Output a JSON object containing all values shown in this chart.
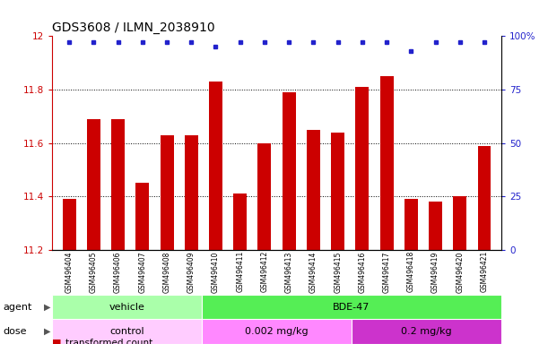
{
  "title": "GDS3608 / ILMN_2038910",
  "samples": [
    "GSM496404",
    "GSM496405",
    "GSM496406",
    "GSM496407",
    "GSM496408",
    "GSM496409",
    "GSM496410",
    "GSM496411",
    "GSM496412",
    "GSM496413",
    "GSM496414",
    "GSM496415",
    "GSM496416",
    "GSM496417",
    "GSM496418",
    "GSM496419",
    "GSM496420",
    "GSM496421"
  ],
  "bar_values": [
    11.39,
    11.69,
    11.69,
    11.45,
    11.63,
    11.63,
    11.83,
    11.41,
    11.6,
    11.79,
    11.65,
    11.64,
    11.81,
    11.85,
    11.39,
    11.38,
    11.4,
    11.59
  ],
  "percentile_values": [
    97,
    97,
    97,
    97,
    97,
    97,
    95,
    97,
    97,
    97,
    97,
    97,
    97,
    97,
    93,
    97,
    97,
    97
  ],
  "ymin": 11.2,
  "ymax": 12.0,
  "yticks_left": [
    11.2,
    11.4,
    11.6,
    11.8,
    12.0
  ],
  "ytick_labels_left": [
    "11.2",
    "11.4",
    "11.6",
    "11.8",
    "12"
  ],
  "right_yticks": [
    0,
    25,
    50,
    75,
    100
  ],
  "right_ytick_labels": [
    "0",
    "25",
    "50",
    "75",
    "100%"
  ],
  "bar_color": "#cc0000",
  "percentile_color": "#2222cc",
  "agent_row": [
    {
      "label": "vehicle",
      "start": 0,
      "end": 6,
      "color": "#aaffaa"
    },
    {
      "label": "BDE-47",
      "start": 6,
      "end": 18,
      "color": "#55ee55"
    }
  ],
  "dose_row": [
    {
      "label": "control",
      "start": 0,
      "end": 6,
      "color": "#ffccff"
    },
    {
      "label": "0.002 mg/kg",
      "start": 6,
      "end": 12,
      "color": "#ff88ff"
    },
    {
      "label": "0.2 mg/kg",
      "start": 12,
      "end": 18,
      "color": "#cc33cc"
    }
  ],
  "title_fontsize": 10,
  "tick_fontsize": 7.5,
  "bar_fontsize": 5.5,
  "label_fontsize": 8
}
